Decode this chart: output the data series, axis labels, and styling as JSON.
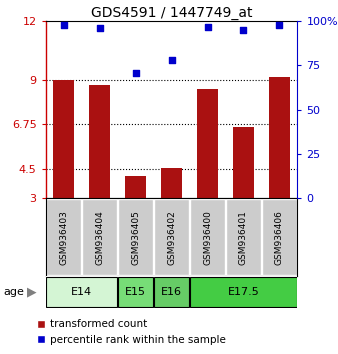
{
  "title": "GDS4591 / 1447749_at",
  "samples": [
    "GSM936403",
    "GSM936404",
    "GSM936405",
    "GSM936402",
    "GSM936400",
    "GSM936401",
    "GSM936406"
  ],
  "red_values": [
    9.0,
    8.75,
    4.15,
    4.55,
    8.55,
    6.6,
    9.15
  ],
  "blue_values": [
    98,
    96,
    71,
    78,
    97,
    95,
    98
  ],
  "age_groups": [
    {
      "label": "E14",
      "start": 0,
      "end": 2,
      "color": "#d4f5d4"
    },
    {
      "label": "E15",
      "start": 2,
      "end": 3,
      "color": "#77dd77"
    },
    {
      "label": "E16",
      "start": 3,
      "end": 4,
      "color": "#66cc66"
    },
    {
      "label": "E17.5",
      "start": 4,
      "end": 7,
      "color": "#44cc44"
    }
  ],
  "ylim_left": [
    3,
    12
  ],
  "ylim_right": [
    0,
    100
  ],
  "yticks_left": [
    3,
    4.5,
    6.75,
    9,
    12
  ],
  "ytick_labels_left": [
    "3",
    "4.5",
    "6.75",
    "9",
    "12"
  ],
  "yticks_right": [
    0,
    25,
    50,
    75,
    100
  ],
  "ytick_labels_right": [
    "0",
    "25",
    "50",
    "75",
    "100%"
  ],
  "bar_color": "#aa1111",
  "dot_color": "#0000cc",
  "bar_width": 0.6,
  "grid_ticks": [
    4.5,
    6.75,
    9
  ],
  "legend_items": [
    {
      "color": "#aa1111",
      "label": "transformed count"
    },
    {
      "color": "#0000cc",
      "label": "percentile rank within the sample"
    }
  ]
}
